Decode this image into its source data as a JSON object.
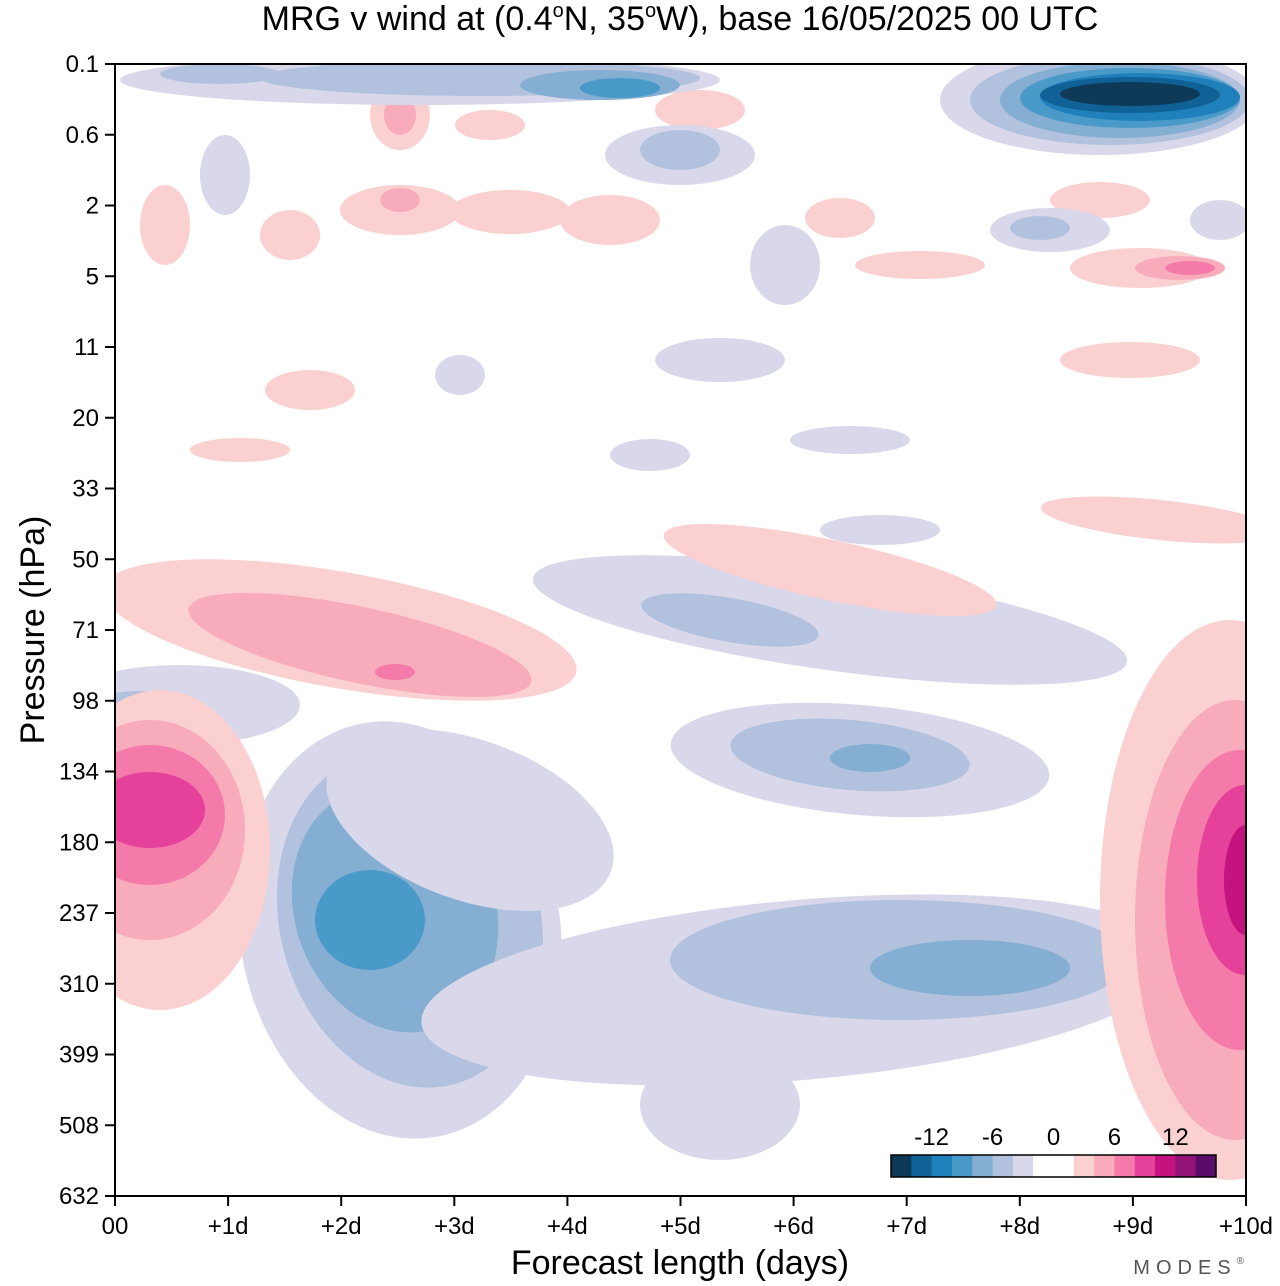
{
  "chart_data": {
    "type": "heatmap",
    "title_main": "MRG v wind at (0.4",
    "title_sup1": "o",
    "title_mid": "N, 35",
    "title_sup2": "o",
    "title_end": "W),  base 16/05/2025  00 UTC",
    "xlabel": "Forecast length (days)",
    "ylabel": "Pressure (hPa)",
    "x_ticks": [
      "00",
      "+1d",
      "+2d",
      "+3d",
      "+4d",
      "+5d",
      "+6d",
      "+7d",
      "+8d",
      "+9d",
      "+10d"
    ],
    "x_range_days": [
      0,
      10
    ],
    "y_ticks": [
      "0.1",
      "0.6",
      "2",
      "5",
      "11",
      "20",
      "33",
      "50",
      "71",
      "98",
      "134",
      "180",
      "237",
      "310",
      "399",
      "508",
      "632"
    ],
    "colorbar": {
      "tick_labels": [
        "-12",
        "-6",
        "0",
        "6",
        "12"
      ],
      "tick_values": [
        -12,
        -6,
        0,
        6,
        12
      ],
      "colors": [
        "#0e3a58",
        "#0f6196",
        "#1f80bc",
        "#4a9ac9",
        "#84aed2",
        "#b2c2de",
        "#d8d8ea",
        "#ffffff",
        "#ffffff",
        "#fad0d0",
        "#f8abba",
        "#f47aaa",
        "#e5409a",
        "#c4127f",
        "#931277",
        "#5a0d68"
      ]
    },
    "features": [
      {
        "sign": "negative",
        "day_range": [
          1.5,
          5.3
        ],
        "pressure_range": [
          134,
          500
        ],
        "peak": -10
      },
      {
        "sign": "negative",
        "day_range": [
          5.5,
          9.2
        ],
        "pressure_range": [
          220,
          420
        ],
        "peak": -8
      },
      {
        "sign": "negative",
        "day_range": [
          4.9,
          8.3
        ],
        "pressure_range": [
          100,
          160
        ],
        "peak": -7
      },
      {
        "sign": "negative",
        "day_range": [
          4.0,
          10.0
        ],
        "pressure_range": [
          0.1,
          0.6
        ],
        "peak": -14
      },
      {
        "sign": "positive",
        "day_range": [
          0,
          1.4
        ],
        "pressure_range": [
          120,
          300
        ],
        "peak": 10
      },
      {
        "sign": "positive",
        "day_range": [
          8.7,
          10.0
        ],
        "pressure_range": [
          140,
          600
        ],
        "peak": 13
      },
      {
        "sign": "positive",
        "day_range": [
          0,
          4.1
        ],
        "pressure_range": [
          55,
          100
        ],
        "peak": 8
      },
      {
        "sign": "positive",
        "day_range": [
          5.2,
          8.4
        ],
        "pressure_range": [
          40,
          75
        ],
        "peak": 4
      }
    ]
  },
  "branding": {
    "logo_text": "MODES",
    "logo_mark": "®"
  }
}
